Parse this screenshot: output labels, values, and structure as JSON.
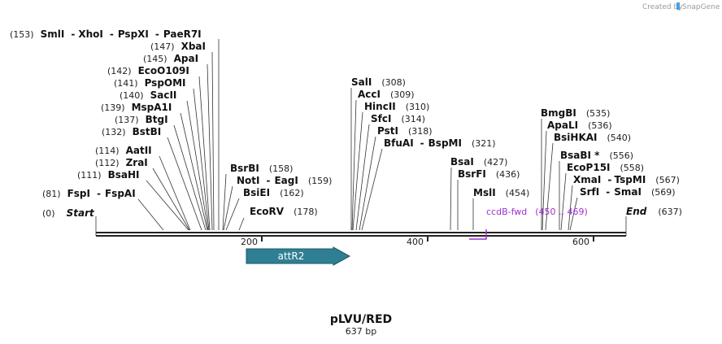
{
  "credit": {
    "text": "Created by",
    "brand": "SnapGene"
  },
  "plasmid": {
    "name": "pLVU/RED",
    "length_label": "637 bp"
  },
  "map": {
    "start_label": "Start",
    "start_pos": "(0)",
    "end_label": "End",
    "end_pos": "(637)",
    "ticks": [
      "200",
      "400",
      "600"
    ]
  },
  "sites": {
    "s1": {
      "pos": "(153)",
      "names": [
        "SmlI",
        "XhoI",
        "PspXI",
        "PaeR7I"
      ]
    },
    "s2": {
      "pos": "(147)",
      "names": [
        "XbaI"
      ]
    },
    "s3": {
      "pos": "(145)",
      "names": [
        "ApaI"
      ]
    },
    "s4": {
      "pos": "(142)",
      "names": [
        "EcoO109I"
      ]
    },
    "s5": {
      "pos": "(141)",
      "names": [
        "PspOMI"
      ]
    },
    "s6": {
      "pos": "(140)",
      "names": [
        "SacII"
      ]
    },
    "s7": {
      "pos": "(139)",
      "names": [
        "MspA1I"
      ]
    },
    "s8": {
      "pos": "(137)",
      "names": [
        "BtgI"
      ]
    },
    "s9": {
      "pos": "(132)",
      "names": [
        "BstBI"
      ]
    },
    "s10": {
      "pos": "(114)",
      "names": [
        "AatII"
      ]
    },
    "s11": {
      "pos": "(112)",
      "names": [
        "ZraI"
      ]
    },
    "s12": {
      "pos": "(111)",
      "names": [
        "BsaHI"
      ]
    },
    "s13": {
      "pos": "(81)",
      "names": [
        "FspI",
        "FspAI"
      ]
    },
    "s14": {
      "pos": "(158)",
      "names": [
        "BsrBI"
      ]
    },
    "s15": {
      "pos": "(159)",
      "names": [
        "NotI",
        "EagI"
      ]
    },
    "s16": {
      "pos": "(162)",
      "names": [
        "BsiEI"
      ]
    },
    "s17": {
      "pos": "(178)",
      "names": [
        "EcoRV"
      ]
    },
    "s18": {
      "pos": "(308)",
      "names": [
        "SalI"
      ]
    },
    "s19": {
      "pos": "(309)",
      "names": [
        "AccI"
      ]
    },
    "s20": {
      "pos": "(310)",
      "names": [
        "HincII"
      ]
    },
    "s21": {
      "pos": "(314)",
      "names": [
        "SfcI"
      ]
    },
    "s22": {
      "pos": "(318)",
      "names": [
        "PstI"
      ]
    },
    "s23": {
      "pos": "(321)",
      "names": [
        "BfuAI",
        "BspMI"
      ]
    },
    "s24": {
      "pos": "(427)",
      "names": [
        "BsaI"
      ]
    },
    "s25": {
      "pos": "(436)",
      "names": [
        "BsrFI"
      ]
    },
    "s26": {
      "pos": "(454)",
      "names": [
        "MslI"
      ]
    },
    "s27": {
      "pos": "(535)",
      "names": [
        "BmgBI"
      ]
    },
    "s28": {
      "pos": "(536)",
      "names": [
        "ApaLI"
      ]
    },
    "s29": {
      "pos": "(540)",
      "names": [
        "BsiHKAI"
      ]
    },
    "s30": {
      "pos": "(556)",
      "names": [
        "BsaBI *"
      ]
    },
    "s31": {
      "pos": "(558)",
      "names": [
        "EcoP15I"
      ]
    },
    "s32": {
      "pos": "(567)",
      "names": [
        "XmaI",
        "TspMI"
      ]
    },
    "s33": {
      "pos": "(569)",
      "names": [
        "SrfI",
        "SmaI"
      ]
    }
  },
  "features": {
    "attR2": "attR2"
  },
  "primer": {
    "name": "ccdB-fwd",
    "range": "(450 .. 469)"
  },
  "colors": {
    "feature": "#2f7f94",
    "primer": "#9b30d0",
    "backbone": "#222222"
  }
}
